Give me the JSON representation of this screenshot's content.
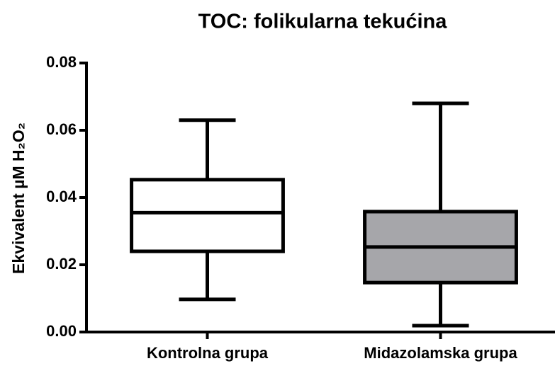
{
  "chart_data": {
    "type": "box",
    "title": "TOC: folikularna tekućina",
    "ylabel": "Ekvivalent µM H₂O₂",
    "categories": [
      "Kontrolna grupa",
      "Midazolamska grupa"
    ],
    "min": [
      0.0097,
      0.0019
    ],
    "q1": [
      0.024,
      0.0147
    ],
    "median": [
      0.0355,
      0.0253
    ],
    "q3": [
      0.0453,
      0.0358
    ],
    "max": [
      0.063,
      0.068
    ],
    "colors": [
      "#ffffff",
      "#a6a6aa"
    ],
    "ylim": [
      0,
      0.08
    ],
    "yticks": [
      {
        "value": 0,
        "label": "0.00"
      },
      0.02,
      0.04,
      0.06,
      0.08
    ]
  }
}
